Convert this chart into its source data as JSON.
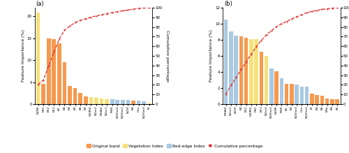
{
  "subplot_a": {
    "labels": [
      "NDMI",
      "MVI",
      "B12",
      "B11",
      "B5",
      "B4",
      "B3",
      "B2",
      "B6",
      "B7",
      "WDRVI",
      "NDre2",
      "MSAVI",
      "NDre1",
      "PSRI",
      "NDVIre2",
      "NDVIre1",
      "NDVI",
      "B8",
      "CIre",
      "NDVIre3",
      "BI"
    ],
    "values": [
      20.8,
      4.6,
      15.0,
      14.8,
      13.8,
      9.5,
      4.2,
      3.7,
      2.5,
      1.7,
      1.55,
      1.35,
      1.25,
      1.15,
      1.05,
      1.0,
      0.95,
      0.9,
      0.85,
      0.75,
      0.65,
      0.2
    ],
    "colors": [
      "#f5e17a",
      "#f5994f",
      "#f5994f",
      "#f5994f",
      "#f5994f",
      "#f5994f",
      "#f5994f",
      "#f5994f",
      "#f5994f",
      "#f5994f",
      "#f5e17a",
      "#f5e17a",
      "#f5e17a",
      "#f5e17a",
      "#a9c9e2",
      "#a9c9e2",
      "#a9c9e2",
      "#a9c9e2",
      "#f5994f",
      "#a9c9e2",
      "#a9c9e2",
      "#f5e17a"
    ],
    "ylim": [
      0,
      22
    ],
    "yticks": [
      0,
      5,
      10,
      15,
      20
    ],
    "ylabel": "Feature Importance (%)"
  },
  "subplot_b": {
    "labels": [
      "MSAVI",
      "NDre1",
      "NDVI",
      "B4",
      "B12",
      "WDRVI",
      "MVI",
      "B11",
      "NDre2",
      "NDVIre1",
      "NDMI",
      "PSRI",
      "B5",
      "B2",
      "NDVIre3",
      "CIre",
      "NDVIre2",
      "BI",
      "B3",
      "B6",
      "B8a",
      "B8",
      "B7"
    ],
    "values": [
      10.55,
      9.05,
      8.55,
      8.4,
      8.25,
      8.1,
      8.1,
      6.5,
      6.0,
      4.45,
      4.1,
      3.2,
      2.55,
      2.5,
      2.45,
      2.15,
      2.15,
      1.3,
      1.1,
      1.05,
      0.65,
      0.6,
      0.6
    ],
    "colors": [
      "#a9c9e2",
      "#a9c9e2",
      "#a9c9e2",
      "#f5994f",
      "#f5994f",
      "#f5e17a",
      "#f5e17a",
      "#f5994f",
      "#f5e17a",
      "#a9c9e2",
      "#f5994f",
      "#a9c9e2",
      "#f5994f",
      "#f5994f",
      "#a9c9e2",
      "#a9c9e2",
      "#a9c9e2",
      "#f5994f",
      "#f5994f",
      "#f5994f",
      "#f5994f",
      "#f5994f",
      "#f5994f"
    ],
    "ylim": [
      0,
      12
    ],
    "yticks": [
      0,
      2,
      4,
      6,
      8,
      10,
      12
    ],
    "ylabel": "Feature Importance (%)"
  },
  "legend": {
    "original_band_color": "#f5994f",
    "vegetation_index_color": "#f5e17a",
    "red_edge_index_color": "#a9c9e2",
    "cumulative_color": "#e03030"
  },
  "right_ylim": [
    0,
    100
  ],
  "right_yticks": [
    0,
    10,
    20,
    30,
    40,
    50,
    60,
    70,
    80,
    90,
    100
  ],
  "right_ylabel": "Cumulative percentage",
  "title_a": "(a)",
  "title_b": "(b)"
}
